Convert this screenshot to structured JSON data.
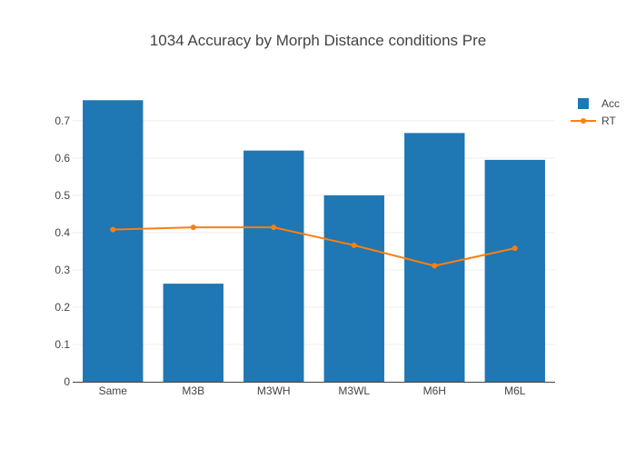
{
  "chart_data": {
    "type": "bar",
    "title": "1034 Accuracy by Morph Distance conditions Pre",
    "xlabel": "",
    "ylabel": "",
    "categories": [
      "Same",
      "M3B",
      "M3WH",
      "M3WL",
      "M6H",
      "M6L"
    ],
    "series": [
      {
        "name": "Acc",
        "type": "bar",
        "color": "#1f77b4",
        "values": [
          0.755,
          0.263,
          0.62,
          0.5,
          0.667,
          0.595
        ]
      },
      {
        "name": "RT",
        "type": "line",
        "color": "#ff7f0e",
        "values": [
          0.408,
          0.414,
          0.414,
          0.366,
          0.311,
          0.358
        ]
      }
    ],
    "yticks": [
      "0",
      "0.1",
      "0.2",
      "0.3",
      "0.4",
      "0.5",
      "0.6",
      "0.7"
    ],
    "ylim": [
      0,
      0.78
    ],
    "grid": true,
    "legend": "top-right"
  }
}
